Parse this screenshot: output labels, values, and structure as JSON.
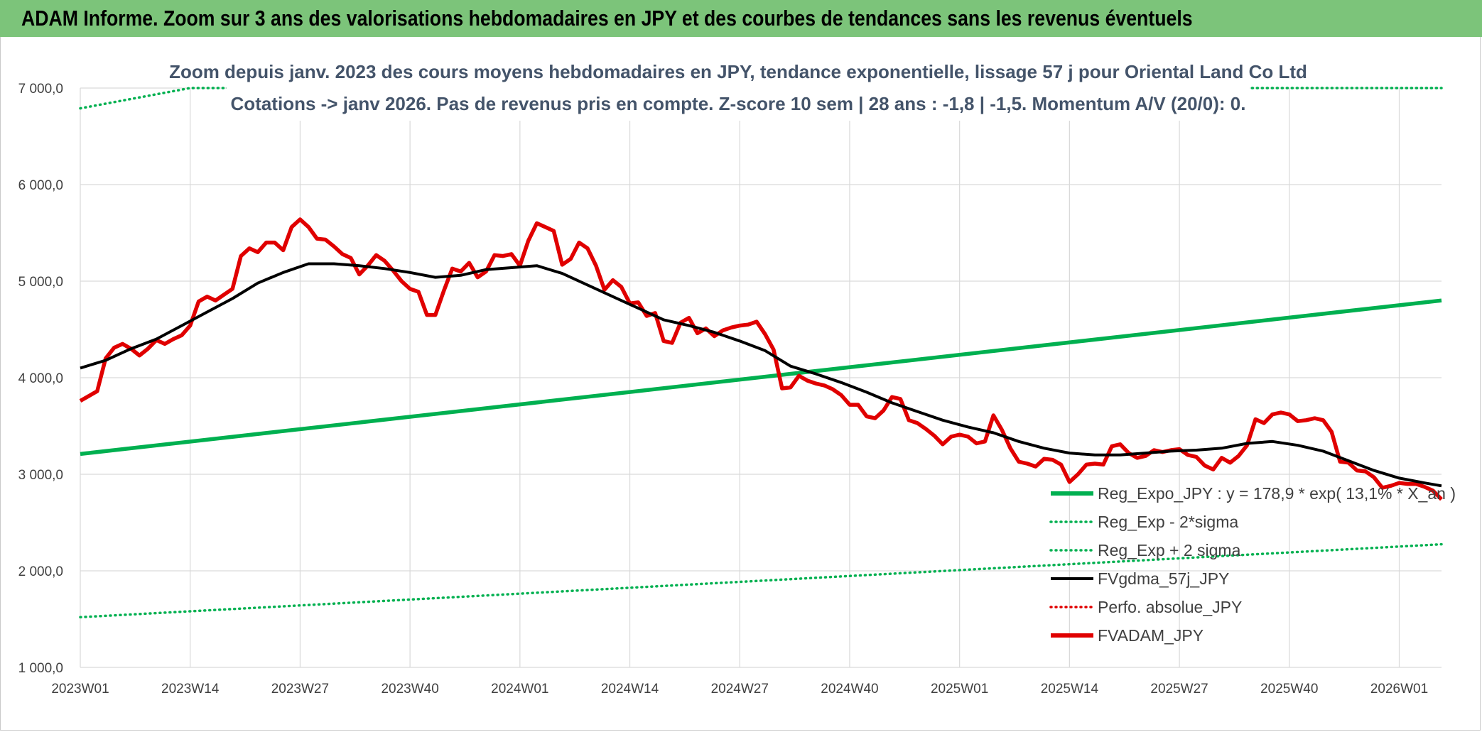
{
  "header": {
    "title": "ADAM Informe. Zoom sur 3 ans des valorisations hebdomadaires en JPY et des courbes de tendances sans les revenus éventuels"
  },
  "colors": {
    "header_bg": "#7cc47a",
    "green": "#00b050",
    "red": "#e00000",
    "black": "#000000",
    "dotted_red": "#e00000",
    "grid": "#d9d9d9",
    "title": "#44546a"
  },
  "chart_data": {
    "type": "line",
    "title_line1": "Zoom depuis janv. 2023 des cours moyens hebdomadaires en JPY, tendance exponentielle, lissage 57 j pour Oriental Land Co Ltd",
    "title_line2": "Cotations -> janv 2026. Pas de revenus pris en compte. Z-score 10 sem | 28 ans : -1,8 | -1,5. Momentum A/V (20/0): 0.",
    "ylim": [
      1000,
      7000
    ],
    "yticks": [
      1000,
      2000,
      3000,
      4000,
      5000,
      6000,
      7000
    ],
    "ytick_labels": [
      "1 000,0",
      "2 000,0",
      "3 000,0",
      "4 000,0",
      "5 000,0",
      "6 000,0",
      "7 000,0"
    ],
    "xlim": [
      0,
      161
    ],
    "xticks": [
      0,
      13,
      26,
      39,
      52,
      65,
      78,
      91,
      104,
      117,
      130,
      143,
      156
    ],
    "xtick_labels": [
      "2023W01",
      "2023W14",
      "2023W27",
      "2023W40",
      "2024W01",
      "2024W14",
      "2024W27",
      "2024W40",
      "2025W01",
      "2025W14",
      "2025W27",
      "2025W40",
      "2026W01"
    ],
    "grid": true,
    "legend_position": "bottom-right",
    "series": [
      {
        "key": "reg",
        "name": "Reg_Expo_JPY : y = 178,9 * exp( 13,1% * X_an )",
        "style": "solid-thick",
        "color": "#00b050",
        "points": [
          [
            0,
            3210
          ],
          [
            161,
            4800
          ]
        ]
      },
      {
        "key": "lower",
        "name": "Reg_Exp - 2*sigma",
        "style": "dotted",
        "color": "#00b050",
        "points": [
          [
            0,
            1520
          ],
          [
            161,
            2275
          ]
        ]
      },
      {
        "key": "upper",
        "name": "Reg_Exp + 2 sigma",
        "style": "dotted",
        "color": "#00b050",
        "points": [
          [
            0,
            6790
          ],
          [
            13,
            7000
          ],
          [
            161,
            7000
          ]
        ]
      },
      {
        "key": "fvgdma",
        "name": "FVgdma_57j_JPY",
        "style": "solid",
        "color": "#000000",
        "points": [
          [
            0,
            4100
          ],
          [
            3,
            4180
          ],
          [
            6,
            4300
          ],
          [
            9,
            4400
          ],
          [
            12,
            4540
          ],
          [
            15,
            4680
          ],
          [
            18,
            4820
          ],
          [
            21,
            4980
          ],
          [
            24,
            5090
          ],
          [
            27,
            5180
          ],
          [
            30,
            5180
          ],
          [
            33,
            5160
          ],
          [
            36,
            5130
          ],
          [
            39,
            5090
          ],
          [
            42,
            5040
          ],
          [
            45,
            5060
          ],
          [
            48,
            5120
          ],
          [
            51,
            5140
          ],
          [
            54,
            5160
          ],
          [
            57,
            5080
          ],
          [
            60,
            4960
          ],
          [
            63,
            4840
          ],
          [
            66,
            4720
          ],
          [
            69,
            4600
          ],
          [
            72,
            4540
          ],
          [
            75,
            4470
          ],
          [
            78,
            4380
          ],
          [
            81,
            4280
          ],
          [
            84,
            4120
          ],
          [
            87,
            4040
          ],
          [
            90,
            3950
          ],
          [
            93,
            3850
          ],
          [
            96,
            3740
          ],
          [
            99,
            3650
          ],
          [
            102,
            3560
          ],
          [
            105,
            3490
          ],
          [
            108,
            3430
          ],
          [
            111,
            3340
          ],
          [
            114,
            3270
          ],
          [
            117,
            3220
          ],
          [
            120,
            3200
          ],
          [
            123,
            3200
          ],
          [
            126,
            3220
          ],
          [
            129,
            3240
          ],
          [
            132,
            3250
          ],
          [
            135,
            3270
          ],
          [
            138,
            3320
          ],
          [
            141,
            3340
          ],
          [
            144,
            3300
          ],
          [
            147,
            3240
          ],
          [
            150,
            3140
          ],
          [
            153,
            3040
          ],
          [
            156,
            2960
          ],
          [
            159,
            2910
          ],
          [
            161,
            2880
          ]
        ]
      },
      {
        "key": "perfo",
        "name": "Perfo. absolue_JPY",
        "style": "dotted",
        "color": "#e00000",
        "points": []
      },
      {
        "key": "fvadam",
        "name": "FVADAM_JPY",
        "style": "solid-thick",
        "color": "#e00000",
        "points": [
          [
            0,
            3760
          ],
          [
            2,
            3860
          ],
          [
            3,
            4200
          ],
          [
            4,
            4310
          ],
          [
            5,
            4350
          ],
          [
            6,
            4300
          ],
          [
            7,
            4230
          ],
          [
            8,
            4300
          ],
          [
            9,
            4390
          ],
          [
            10,
            4350
          ],
          [
            11,
            4400
          ],
          [
            12,
            4440
          ],
          [
            13,
            4540
          ],
          [
            14,
            4790
          ],
          [
            15,
            4840
          ],
          [
            16,
            4800
          ],
          [
            17,
            4860
          ],
          [
            18,
            4920
          ],
          [
            19,
            5260
          ],
          [
            20,
            5340
          ],
          [
            21,
            5300
          ],
          [
            22,
            5400
          ],
          [
            23,
            5400
          ],
          [
            24,
            5320
          ],
          [
            25,
            5560
          ],
          [
            26,
            5640
          ],
          [
            27,
            5560
          ],
          [
            28,
            5440
          ],
          [
            29,
            5430
          ],
          [
            30,
            5360
          ],
          [
            31,
            5280
          ],
          [
            32,
            5240
          ],
          [
            33,
            5070
          ],
          [
            34,
            5160
          ],
          [
            35,
            5270
          ],
          [
            36,
            5210
          ],
          [
            37,
            5110
          ],
          [
            38,
            5000
          ],
          [
            39,
            4920
          ],
          [
            40,
            4890
          ],
          [
            41,
            4650
          ],
          [
            42,
            4650
          ],
          [
            43,
            4900
          ],
          [
            44,
            5130
          ],
          [
            45,
            5100
          ],
          [
            46,
            5190
          ],
          [
            47,
            5040
          ],
          [
            48,
            5100
          ],
          [
            49,
            5270
          ],
          [
            50,
            5260
          ],
          [
            51,
            5280
          ],
          [
            52,
            5160
          ],
          [
            53,
            5420
          ],
          [
            54,
            5600
          ],
          [
            55,
            5560
          ],
          [
            56,
            5520
          ],
          [
            57,
            5170
          ],
          [
            58,
            5230
          ],
          [
            59,
            5400
          ],
          [
            60,
            5340
          ],
          [
            61,
            5160
          ],
          [
            62,
            4910
          ],
          [
            63,
            5010
          ],
          [
            64,
            4940
          ],
          [
            65,
            4770
          ],
          [
            66,
            4780
          ],
          [
            67,
            4640
          ],
          [
            68,
            4670
          ],
          [
            69,
            4380
          ],
          [
            70,
            4360
          ],
          [
            71,
            4570
          ],
          [
            72,
            4620
          ],
          [
            73,
            4460
          ],
          [
            74,
            4510
          ],
          [
            75,
            4430
          ],
          [
            76,
            4490
          ],
          [
            77,
            4520
          ],
          [
            78,
            4540
          ],
          [
            79,
            4550
          ],
          [
            80,
            4580
          ],
          [
            81,
            4450
          ],
          [
            82,
            4290
          ],
          [
            83,
            3890
          ],
          [
            84,
            3900
          ],
          [
            85,
            4020
          ],
          [
            86,
            3970
          ],
          [
            87,
            3940
          ],
          [
            88,
            3920
          ],
          [
            89,
            3880
          ],
          [
            90,
            3820
          ],
          [
            91,
            3720
          ],
          [
            92,
            3720
          ],
          [
            93,
            3600
          ],
          [
            94,
            3580
          ],
          [
            95,
            3660
          ],
          [
            96,
            3800
          ],
          [
            97,
            3780
          ],
          [
            98,
            3560
          ],
          [
            99,
            3530
          ],
          [
            100,
            3470
          ],
          [
            101,
            3400
          ],
          [
            102,
            3310
          ],
          [
            103,
            3390
          ],
          [
            104,
            3410
          ],
          [
            105,
            3390
          ],
          [
            106,
            3320
          ],
          [
            107,
            3340
          ],
          [
            108,
            3610
          ],
          [
            109,
            3460
          ],
          [
            110,
            3270
          ],
          [
            111,
            3130
          ],
          [
            112,
            3110
          ],
          [
            113,
            3080
          ],
          [
            114,
            3160
          ],
          [
            115,
            3150
          ],
          [
            116,
            3100
          ],
          [
            117,
            2920
          ],
          [
            118,
            3000
          ],
          [
            119,
            3100
          ],
          [
            120,
            3110
          ],
          [
            121,
            3100
          ],
          [
            122,
            3290
          ],
          [
            123,
            3310
          ],
          [
            124,
            3220
          ],
          [
            125,
            3170
          ],
          [
            126,
            3190
          ],
          [
            127,
            3250
          ],
          [
            128,
            3230
          ],
          [
            129,
            3250
          ],
          [
            130,
            3260
          ],
          [
            131,
            3200
          ],
          [
            132,
            3180
          ],
          [
            133,
            3090
          ],
          [
            134,
            3050
          ],
          [
            135,
            3170
          ],
          [
            136,
            3120
          ],
          [
            137,
            3190
          ],
          [
            138,
            3300
          ],
          [
            139,
            3570
          ],
          [
            140,
            3530
          ],
          [
            141,
            3620
          ],
          [
            142,
            3640
          ],
          [
            143,
            3620
          ],
          [
            144,
            3550
          ],
          [
            145,
            3560
          ],
          [
            146,
            3580
          ],
          [
            147,
            3560
          ],
          [
            148,
            3440
          ],
          [
            149,
            3130
          ],
          [
            150,
            3120
          ],
          [
            151,
            3040
          ],
          [
            152,
            3030
          ],
          [
            153,
            2970
          ],
          [
            154,
            2860
          ],
          [
            155,
            2880
          ],
          [
            156,
            2910
          ],
          [
            157,
            2900
          ],
          [
            158,
            2900
          ],
          [
            159,
            2870
          ],
          [
            160,
            2830
          ],
          [
            161,
            2740
          ]
        ]
      }
    ]
  }
}
